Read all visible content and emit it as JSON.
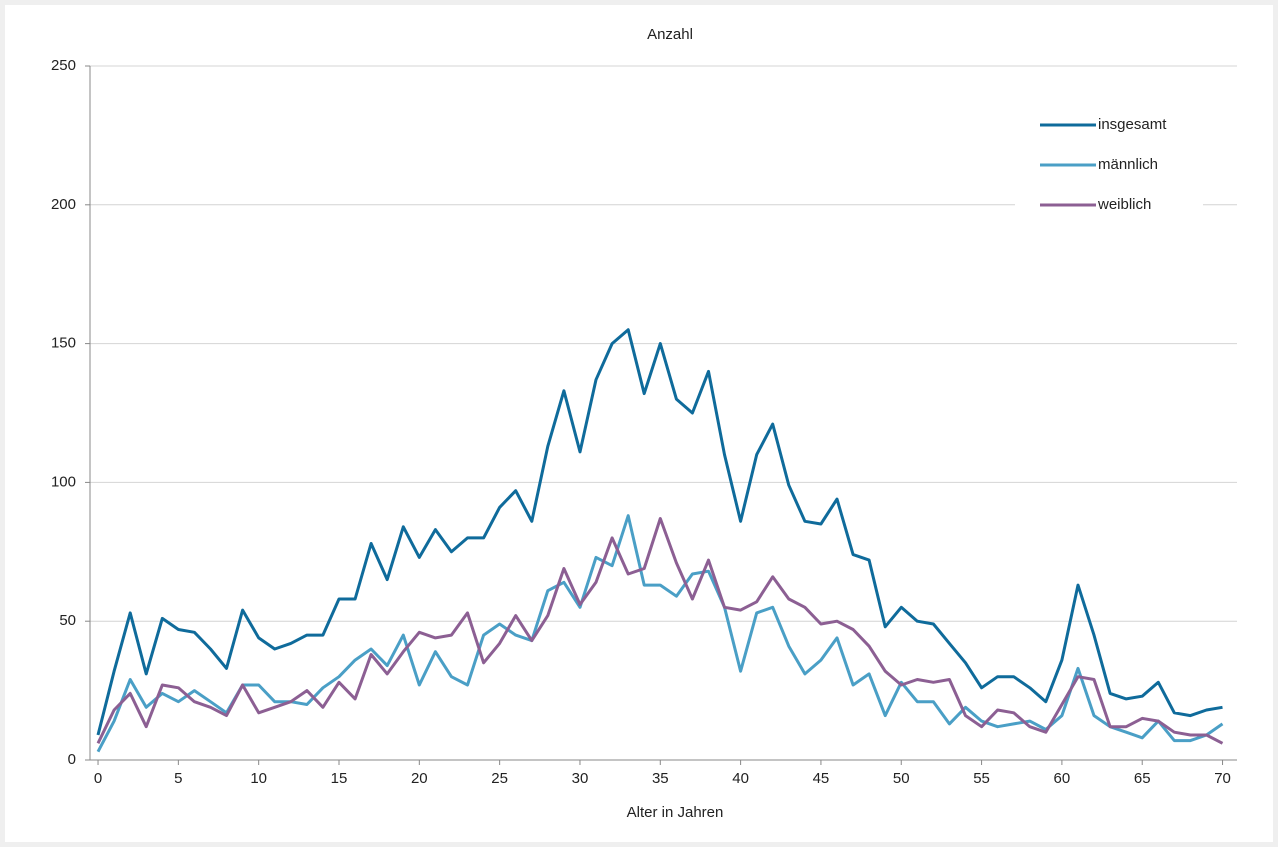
{
  "chart_data": {
    "type": "line",
    "title": "Anzahl",
    "xlabel": "Alter in Jahren",
    "x": [
      0,
      1,
      2,
      3,
      4,
      5,
      6,
      7,
      8,
      9,
      10,
      11,
      12,
      13,
      14,
      15,
      16,
      17,
      18,
      19,
      20,
      21,
      22,
      23,
      24,
      25,
      26,
      27,
      28,
      29,
      30,
      31,
      32,
      33,
      34,
      35,
      36,
      37,
      38,
      39,
      40,
      41,
      42,
      43,
      44,
      45,
      46,
      47,
      48,
      49,
      50,
      51,
      52,
      53,
      54,
      55,
      56,
      57,
      58,
      59,
      60,
      61,
      62,
      63,
      64,
      65,
      66,
      67,
      68,
      69,
      70
    ],
    "series": [
      {
        "name": "insgesamt",
        "color": "#0f6b9b",
        "values": [
          9,
          32,
          53,
          31,
          51,
          47,
          46,
          40,
          33,
          54,
          44,
          40,
          42,
          45,
          45,
          58,
          58,
          78,
          65,
          84,
          73,
          83,
          75,
          80,
          80,
          91,
          97,
          86,
          113,
          133,
          111,
          137,
          150,
          155,
          132,
          150,
          130,
          125,
          140,
          110,
          86,
          110,
          121,
          99,
          86,
          85,
          94,
          74,
          72,
          48,
          55,
          50,
          49,
          42,
          35,
          26,
          30,
          30,
          26,
          21,
          36,
          63,
          45,
          24,
          22,
          23,
          28,
          17,
          16,
          18,
          19
        ]
      },
      {
        "name": "männlich",
        "color": "#4a9fc6",
        "values": [
          3,
          14,
          29,
          19,
          24,
          21,
          25,
          21,
          17,
          27,
          27,
          21,
          21,
          20,
          26,
          30,
          36,
          40,
          34,
          45,
          27,
          39,
          30,
          27,
          45,
          49,
          45,
          43,
          61,
          64,
          55,
          73,
          70,
          88,
          63,
          63,
          59,
          67,
          68,
          55,
          32,
          53,
          55,
          41,
          31,
          36,
          44,
          27,
          31,
          16,
          28,
          21,
          21,
          13,
          19,
          14,
          12,
          13,
          14,
          11,
          16,
          33,
          16,
          12,
          10,
          8,
          14,
          7,
          7,
          9,
          13
        ]
      },
      {
        "name": "weiblich",
        "color": "#8c5f93",
        "values": [
          6,
          18,
          24,
          12,
          27,
          26,
          21,
          19,
          16,
          27,
          17,
          19,
          21,
          25,
          19,
          28,
          22,
          38,
          31,
          39,
          46,
          44,
          45,
          53,
          35,
          42,
          52,
          43,
          52,
          69,
          56,
          64,
          80,
          67,
          69,
          87,
          71,
          58,
          72,
          55,
          54,
          57,
          66,
          58,
          55,
          49,
          50,
          47,
          41,
          32,
          27,
          29,
          28,
          29,
          16,
          12,
          18,
          17,
          12,
          10,
          20,
          30,
          29,
          12,
          12,
          15,
          14,
          10,
          9,
          9,
          6
        ]
      }
    ],
    "xlim": [
      -0.5,
      70.9
    ],
    "xticks": [
      0,
      5,
      10,
      15,
      20,
      25,
      30,
      35,
      40,
      45,
      50,
      55,
      60,
      65,
      70
    ],
    "ylim": [
      0,
      250
    ],
    "yticks": [
      0,
      50,
      100,
      150,
      200,
      250
    ],
    "grid": true,
    "legend": "upper-right"
  }
}
